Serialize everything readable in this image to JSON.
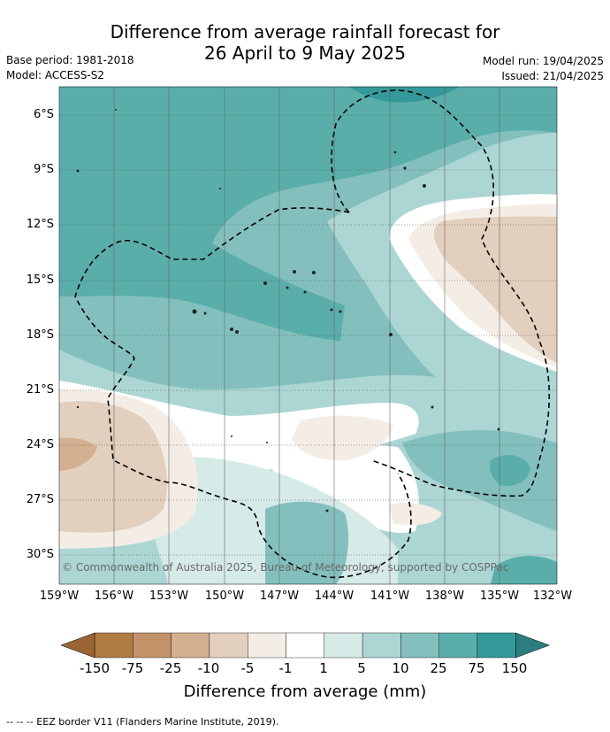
{
  "title_line1": "Difference from average rainfall forecast for",
  "title_line2": "26 April to 9 May 2025",
  "base_period": "Base period: 1981-2018",
  "model": "Model: ACCESS-S2",
  "model_run": "Model run: 19/04/2025",
  "issued": "Issued: 21/04/2025",
  "lat_labels": [
    "6°S",
    "9°S",
    "12°S",
    "15°S",
    "18°S",
    "21°S",
    "24°S",
    "27°S",
    "30°S"
  ],
  "lon_labels": [
    "159°W",
    "156°W",
    "153°W",
    "150°W",
    "147°W",
    "144°W",
    "141°W",
    "138°W",
    "135°W",
    "132°W"
  ],
  "copyright": "© Commonwealth of Australia 2025, Bureau of Meteorology, supported by COSPPac",
  "colorbar": {
    "ticks": [
      "-150",
      "-75",
      "-25",
      "-10",
      "-5",
      "-1",
      "1",
      "5",
      "10",
      "25",
      "75",
      "150"
    ],
    "colors": [
      "#b07a43",
      "#c29368",
      "#d3b090",
      "#e3cfbd",
      "#f3ede6",
      "#ffffff",
      "#d6eae8",
      "#acd6d3",
      "#83c0bd",
      "#5aaeaa",
      "#33999a"
    ],
    "extend_low": "#9a6533",
    "extend_high": "#2a7f7e",
    "title": "Difference from average (mm)"
  },
  "footer": "--  --  -- EEZ border V11 (Flanders Marine Institute, 2019)."
}
